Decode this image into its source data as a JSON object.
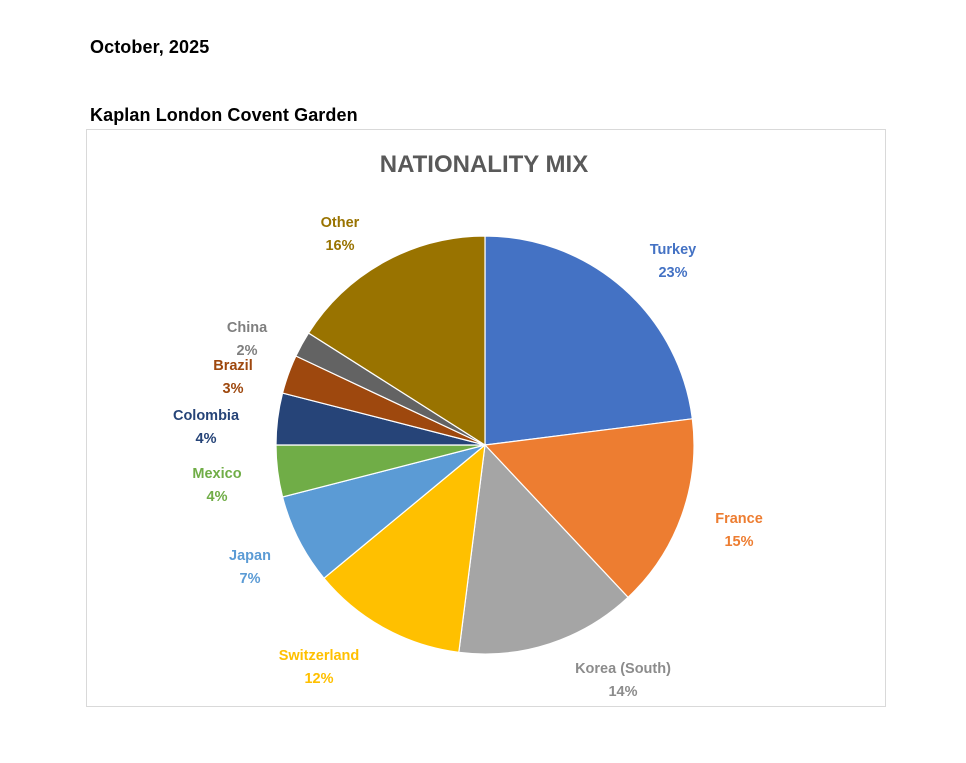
{
  "document": {
    "date": "October, 2025",
    "location": "Kaplan London Covent Garden"
  },
  "chart_data": {
    "type": "pie",
    "title": "NATIONALITY MIX",
    "unit": "%",
    "start_angle_deg": 0,
    "direction": "clockwise",
    "slices": [
      {
        "label": "Turkey",
        "value": 23,
        "display": "23%",
        "color": "#4472C4"
      },
      {
        "label": "France",
        "value": 15,
        "display": "15%",
        "color": "#ED7D31"
      },
      {
        "label": "Korea (South)",
        "value": 14,
        "display": "14%",
        "color": "#A5A5A5"
      },
      {
        "label": "Switzerland",
        "value": 12,
        "display": "12%",
        "color": "#FFC000"
      },
      {
        "label": "Japan",
        "value": 7,
        "display": "7%",
        "color": "#5B9BD5"
      },
      {
        "label": "Mexico",
        "value": 4,
        "display": "4%",
        "color": "#70AD47"
      },
      {
        "label": "Colombia",
        "value": 4,
        "display": "4%",
        "color": "#264478"
      },
      {
        "label": "Brazil",
        "value": 3,
        "display": "3%",
        "color": "#9E480E"
      },
      {
        "label": "China",
        "value": 2,
        "display": "2%",
        "color": "#636363"
      },
      {
        "label": "Other",
        "value": 16,
        "display": "16%",
        "color": "#997300"
      }
    ]
  }
}
